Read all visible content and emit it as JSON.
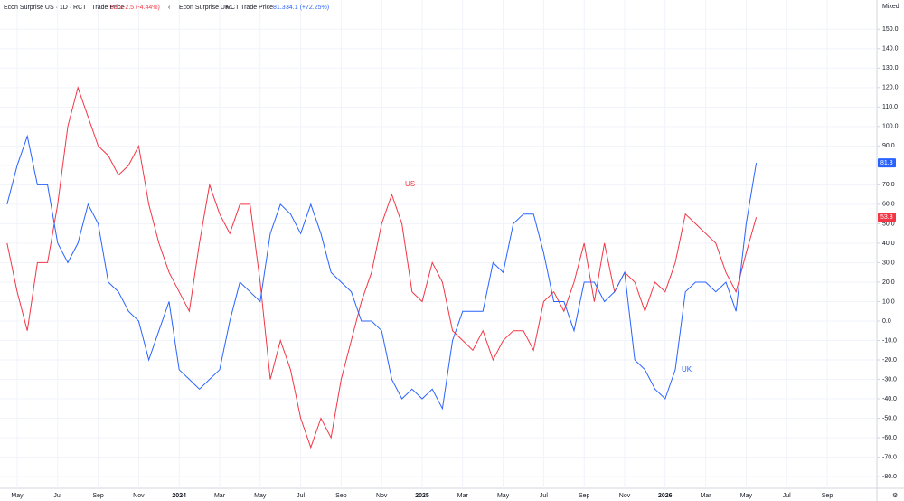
{
  "chart_data": {
    "type": "line",
    "scale_mode": "Mixed",
    "categories": [
      null,
      "May",
      null,
      null,
      null,
      "Jul",
      null,
      null,
      null,
      "Sep",
      null,
      null,
      null,
      "Nov",
      null,
      null,
      null,
      "2024",
      null,
      null,
      null,
      "Mar",
      null,
      null,
      null,
      "May",
      null,
      null,
      null,
      "Jul",
      null,
      null,
      null,
      "Sep",
      null,
      null,
      null,
      "Nov",
      null,
      null,
      null,
      "2025",
      null,
      null,
      null,
      "Mar",
      null,
      null,
      null,
      "May",
      null,
      null,
      null,
      "Jul",
      null,
      null,
      null,
      "Sep",
      null,
      null,
      null,
      "Nov",
      null,
      null,
      null,
      "2026",
      null,
      null,
      null,
      "Mar",
      null,
      null,
      null,
      "May",
      null,
      null,
      null,
      "Jul",
      null,
      null,
      null,
      "Sep",
      null,
      null,
      null
    ],
    "series": [
      {
        "name": "Econ Surprise US · 1D · RCT · Trade Price",
        "change": "-2.5 (-4.44%)",
        "color": "#f23645",
        "values": [
          40,
          15,
          -5,
          30,
          30,
          60,
          100,
          120,
          105,
          90,
          85,
          75,
          80,
          90,
          60,
          40,
          25,
          15,
          5,
          40,
          70,
          55,
          45,
          60,
          60,
          20,
          -30,
          -10,
          -25,
          -50,
          -65,
          -50,
          -60,
          -30,
          -10,
          10,
          25,
          50,
          65,
          50,
          15,
          10,
          30,
          20,
          -5,
          -10,
          -15,
          -5,
          -20,
          -10,
          -5,
          -5,
          -15,
          10,
          15,
          5,
          20,
          40,
          10,
          40,
          15,
          25,
          20,
          5,
          20,
          15,
          30,
          55,
          50,
          45,
          40,
          25,
          15,
          35,
          53.3,
          null,
          null,
          null,
          null,
          null,
          null,
          null,
          null,
          null,
          null
        ]
      },
      {
        "name": "Econ Surprise UK",
        "change": "RCT  Trade Price",
        "delta": "34.1 (+72.25%)",
        "color": "#2962ff",
        "values": [
          60,
          80,
          95,
          70,
          70,
          40,
          30,
          40,
          60,
          50,
          20,
          15,
          5,
          0,
          -20,
          -5,
          10,
          -25,
          -30,
          -35,
          -30,
          -25,
          0,
          20,
          15,
          10,
          45,
          60,
          55,
          45,
          60,
          45,
          25,
          20,
          15,
          0,
          0,
          -5,
          -30,
          -40,
          -35,
          -40,
          -35,
          -45,
          -10,
          5,
          5,
          5,
          30,
          25,
          50,
          55,
          55,
          35,
          10,
          10,
          -5,
          20,
          20,
          10,
          15,
          25,
          -20,
          -25,
          -35,
          -40,
          -25,
          15,
          20,
          20,
          15,
          20,
          5,
          50,
          81.3,
          null,
          null,
          null,
          null,
          null,
          null,
          null,
          null,
          null,
          null
        ]
      }
    ],
    "annotations": [
      "US",
      "UK"
    ],
    "ylim": [
      -86,
      165
    ],
    "yticks": [
      {
        "value": -80,
        "label": "-80.0"
      },
      {
        "value": -70,
        "label": "-70.0"
      },
      {
        "value": -60,
        "label": "-60.0"
      },
      {
        "value": -50,
        "label": "-50.0"
      },
      {
        "value": -40,
        "label": "-40.0"
      },
      {
        "value": -30,
        "label": "-30.0"
      },
      {
        "value": -20,
        "label": "-20.0"
      },
      {
        "value": -10,
        "label": "-10.0"
      },
      {
        "value": 0,
        "label": "0.0"
      },
      {
        "value": 10,
        "label": "10.0"
      },
      {
        "value": 20,
        "label": "20.0"
      },
      {
        "value": 30,
        "label": "30.0"
      },
      {
        "value": 40,
        "label": "40.0"
      },
      {
        "value": 50,
        "label": "50.0"
      },
      {
        "value": 60,
        "label": "60.0"
      },
      {
        "value": 70,
        "label": "70.0"
      },
      {
        "value": 80,
        "label": "80.0"
      },
      {
        "value": 90,
        "label": "90.0"
      },
      {
        "value": 100,
        "label": "100.0"
      },
      {
        "value": 110,
        "label": "110.0"
      },
      {
        "value": 120,
        "label": "120.0"
      },
      {
        "value": 130,
        "label": "130.0"
      },
      {
        "value": 140,
        "label": "140.0"
      },
      {
        "value": 150,
        "label": "150.0"
      }
    ],
    "grid": true
  }
}
